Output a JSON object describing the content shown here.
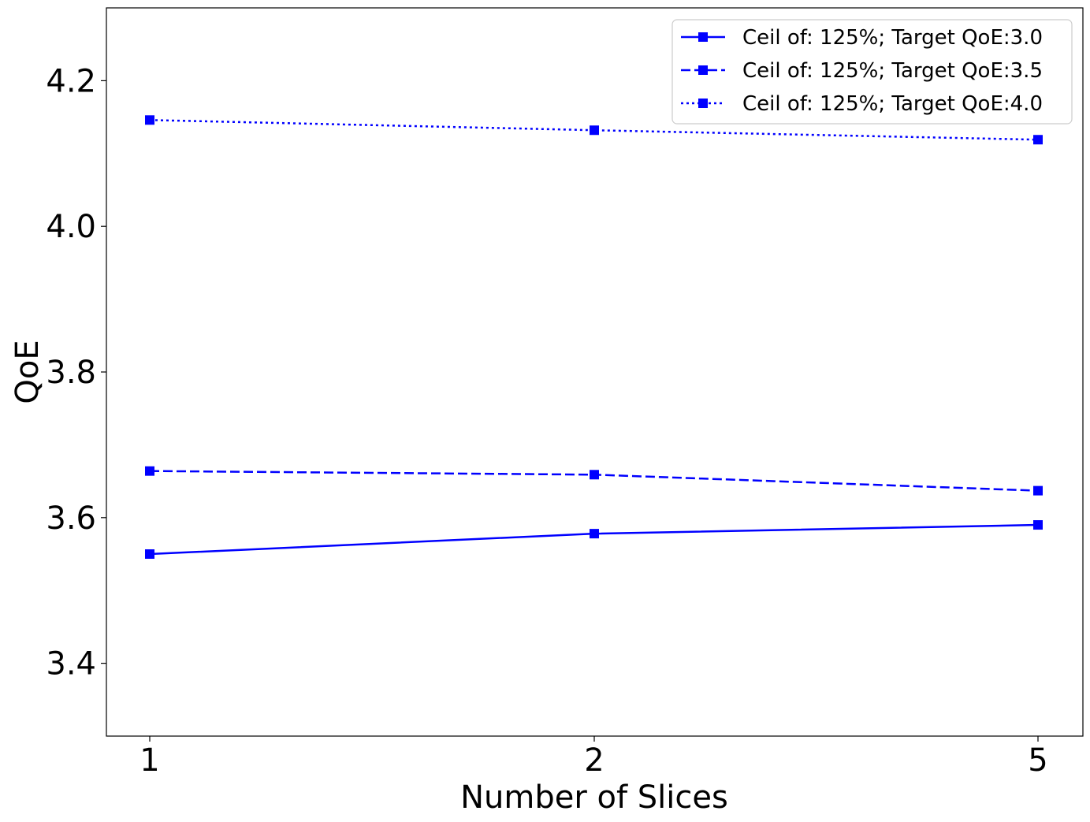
{
  "chart_data": {
    "type": "line",
    "categories": [
      "1",
      "2",
      "5"
    ],
    "xlabel": "Number of Slices",
    "ylabel": "QoE",
    "ylim": [
      3.3,
      4.3
    ],
    "yticks": [
      "3.4",
      "3.6",
      "3.8",
      "4.0",
      "4.2"
    ],
    "grid": false,
    "legend_position": "top-right",
    "series": [
      {
        "name": "Ceil of: 125%; Target QoE:3.0",
        "values": [
          3.55,
          3.578,
          3.59
        ],
        "line_style": "solid",
        "marker": "square",
        "color": "#0000ff"
      },
      {
        "name": "Ceil of: 125%; Target QoE:3.5",
        "values": [
          3.664,
          3.659,
          3.637
        ],
        "line_style": "dashed",
        "marker": "square",
        "color": "#0000ff"
      },
      {
        "name": "Ceil of: 125%; Target QoE:4.0",
        "values": [
          4.146,
          4.132,
          4.119
        ],
        "line_style": "dotted",
        "marker": "square",
        "color": "#0000ff"
      }
    ]
  }
}
